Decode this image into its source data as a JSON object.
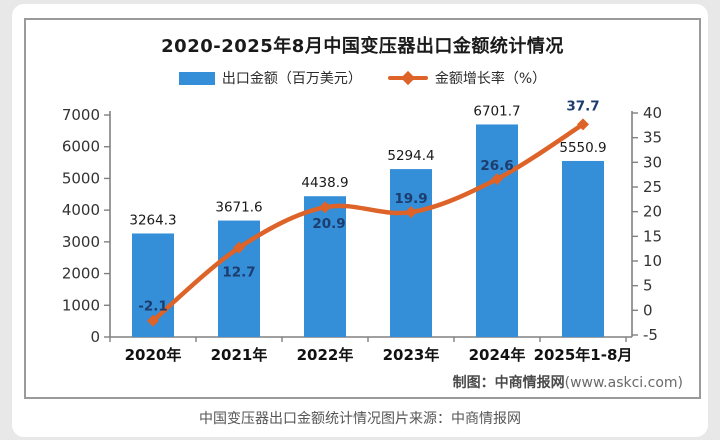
{
  "page": {
    "caption": "中国变压器出口金额统计情况图片来源：中商情报网"
  },
  "chart": {
    "title": "2020-2025年8月中国变压器出口金额统计情况",
    "legend_bar_label": "出口金额（百万美元）",
    "legend_line_label": "金额增长率（%）",
    "credit_text": "制图：中商情报网",
    "credit_url": "(www.askci.com)",
    "colors": {
      "bar": "#348ed8",
      "line": "#dd6328",
      "value_label": "#1a1a1a",
      "rate_label": "#1c3d6e",
      "axis": "#808080",
      "tick_text": "#333333"
    }
  },
  "chart_data": {
    "type": "bar",
    "title": "2020-2025年8月中国变压器出口金额统计情况",
    "categories": [
      "2020年",
      "2021年",
      "2022年",
      "2023年",
      "2024年",
      "2025年1-8月"
    ],
    "series": [
      {
        "name": "出口金额（百万美元）",
        "type": "bar",
        "axis": "left",
        "values": [
          3264.3,
          3671.6,
          4438.9,
          5294.4,
          6701.7,
          5550.9
        ]
      },
      {
        "name": "金额增长率（%）",
        "type": "line",
        "axis": "right",
        "values": [
          -2.1,
          12.7,
          20.9,
          19.9,
          26.6,
          37.7
        ]
      }
    ],
    "left_axis": {
      "min": 0,
      "max": 7000,
      "step": 1000,
      "label": "出口金额（百万美元）"
    },
    "right_axis": {
      "min": -5,
      "max": 40,
      "step": 5,
      "label": "金额增长率（%）"
    },
    "grid": false,
    "legend_position": "top"
  }
}
